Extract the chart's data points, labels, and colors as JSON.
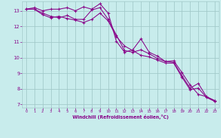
{
  "xlabel": "Windchill (Refroidissement éolien,°C)",
  "xlim": [
    -0.5,
    23.5
  ],
  "ylim": [
    6.8,
    13.6
  ],
  "yticks": [
    7,
    8,
    9,
    10,
    11,
    12,
    13
  ],
  "xticks": [
    0,
    1,
    2,
    3,
    4,
    5,
    6,
    7,
    8,
    9,
    10,
    11,
    12,
    13,
    14,
    15,
    16,
    17,
    18,
    19,
    20,
    21,
    22,
    23
  ],
  "bg_color": "#c8ecec",
  "grid_color": "#a0c8c8",
  "line_color": "#880088",
  "line1_x": [
    0,
    1,
    2,
    3,
    4,
    5,
    6,
    7,
    8,
    9,
    10,
    11,
    12,
    13,
    14,
    15,
    16,
    17,
    18,
    19,
    20,
    21,
    22,
    23
  ],
  "line1_y": [
    13.1,
    13.2,
    13.0,
    13.1,
    13.1,
    13.2,
    13.0,
    13.25,
    13.1,
    13.45,
    12.85,
    11.05,
    10.35,
    10.5,
    11.2,
    10.35,
    10.1,
    9.75,
    9.8,
    9.05,
    8.25,
    7.65,
    7.5,
    7.25
  ],
  "line2_x": [
    0,
    1,
    2,
    3,
    4,
    5,
    6,
    7,
    8,
    9,
    10,
    11,
    12,
    13,
    14,
    15,
    16,
    17,
    18,
    19,
    20,
    21,
    22,
    23
  ],
  "line2_y": [
    13.1,
    13.1,
    12.85,
    12.65,
    12.55,
    12.7,
    12.45,
    12.45,
    13.05,
    13.2,
    12.45,
    11.45,
    10.45,
    10.35,
    10.5,
    10.25,
    9.95,
    9.75,
    9.7,
    8.85,
    8.05,
    8.35,
    7.5,
    7.25
  ],
  "line3_x": [
    0,
    1,
    2,
    3,
    4,
    5,
    6,
    7,
    8,
    9,
    10,
    11,
    12,
    13,
    14,
    15,
    16,
    17,
    18,
    19,
    20,
    21,
    22,
    23
  ],
  "line3_y": [
    13.1,
    13.1,
    12.75,
    12.55,
    12.65,
    12.5,
    12.4,
    12.25,
    12.45,
    12.85,
    12.35,
    11.35,
    10.75,
    10.45,
    10.15,
    10.05,
    9.85,
    9.65,
    9.65,
    8.75,
    7.95,
    8.05,
    7.45,
    7.2
  ]
}
